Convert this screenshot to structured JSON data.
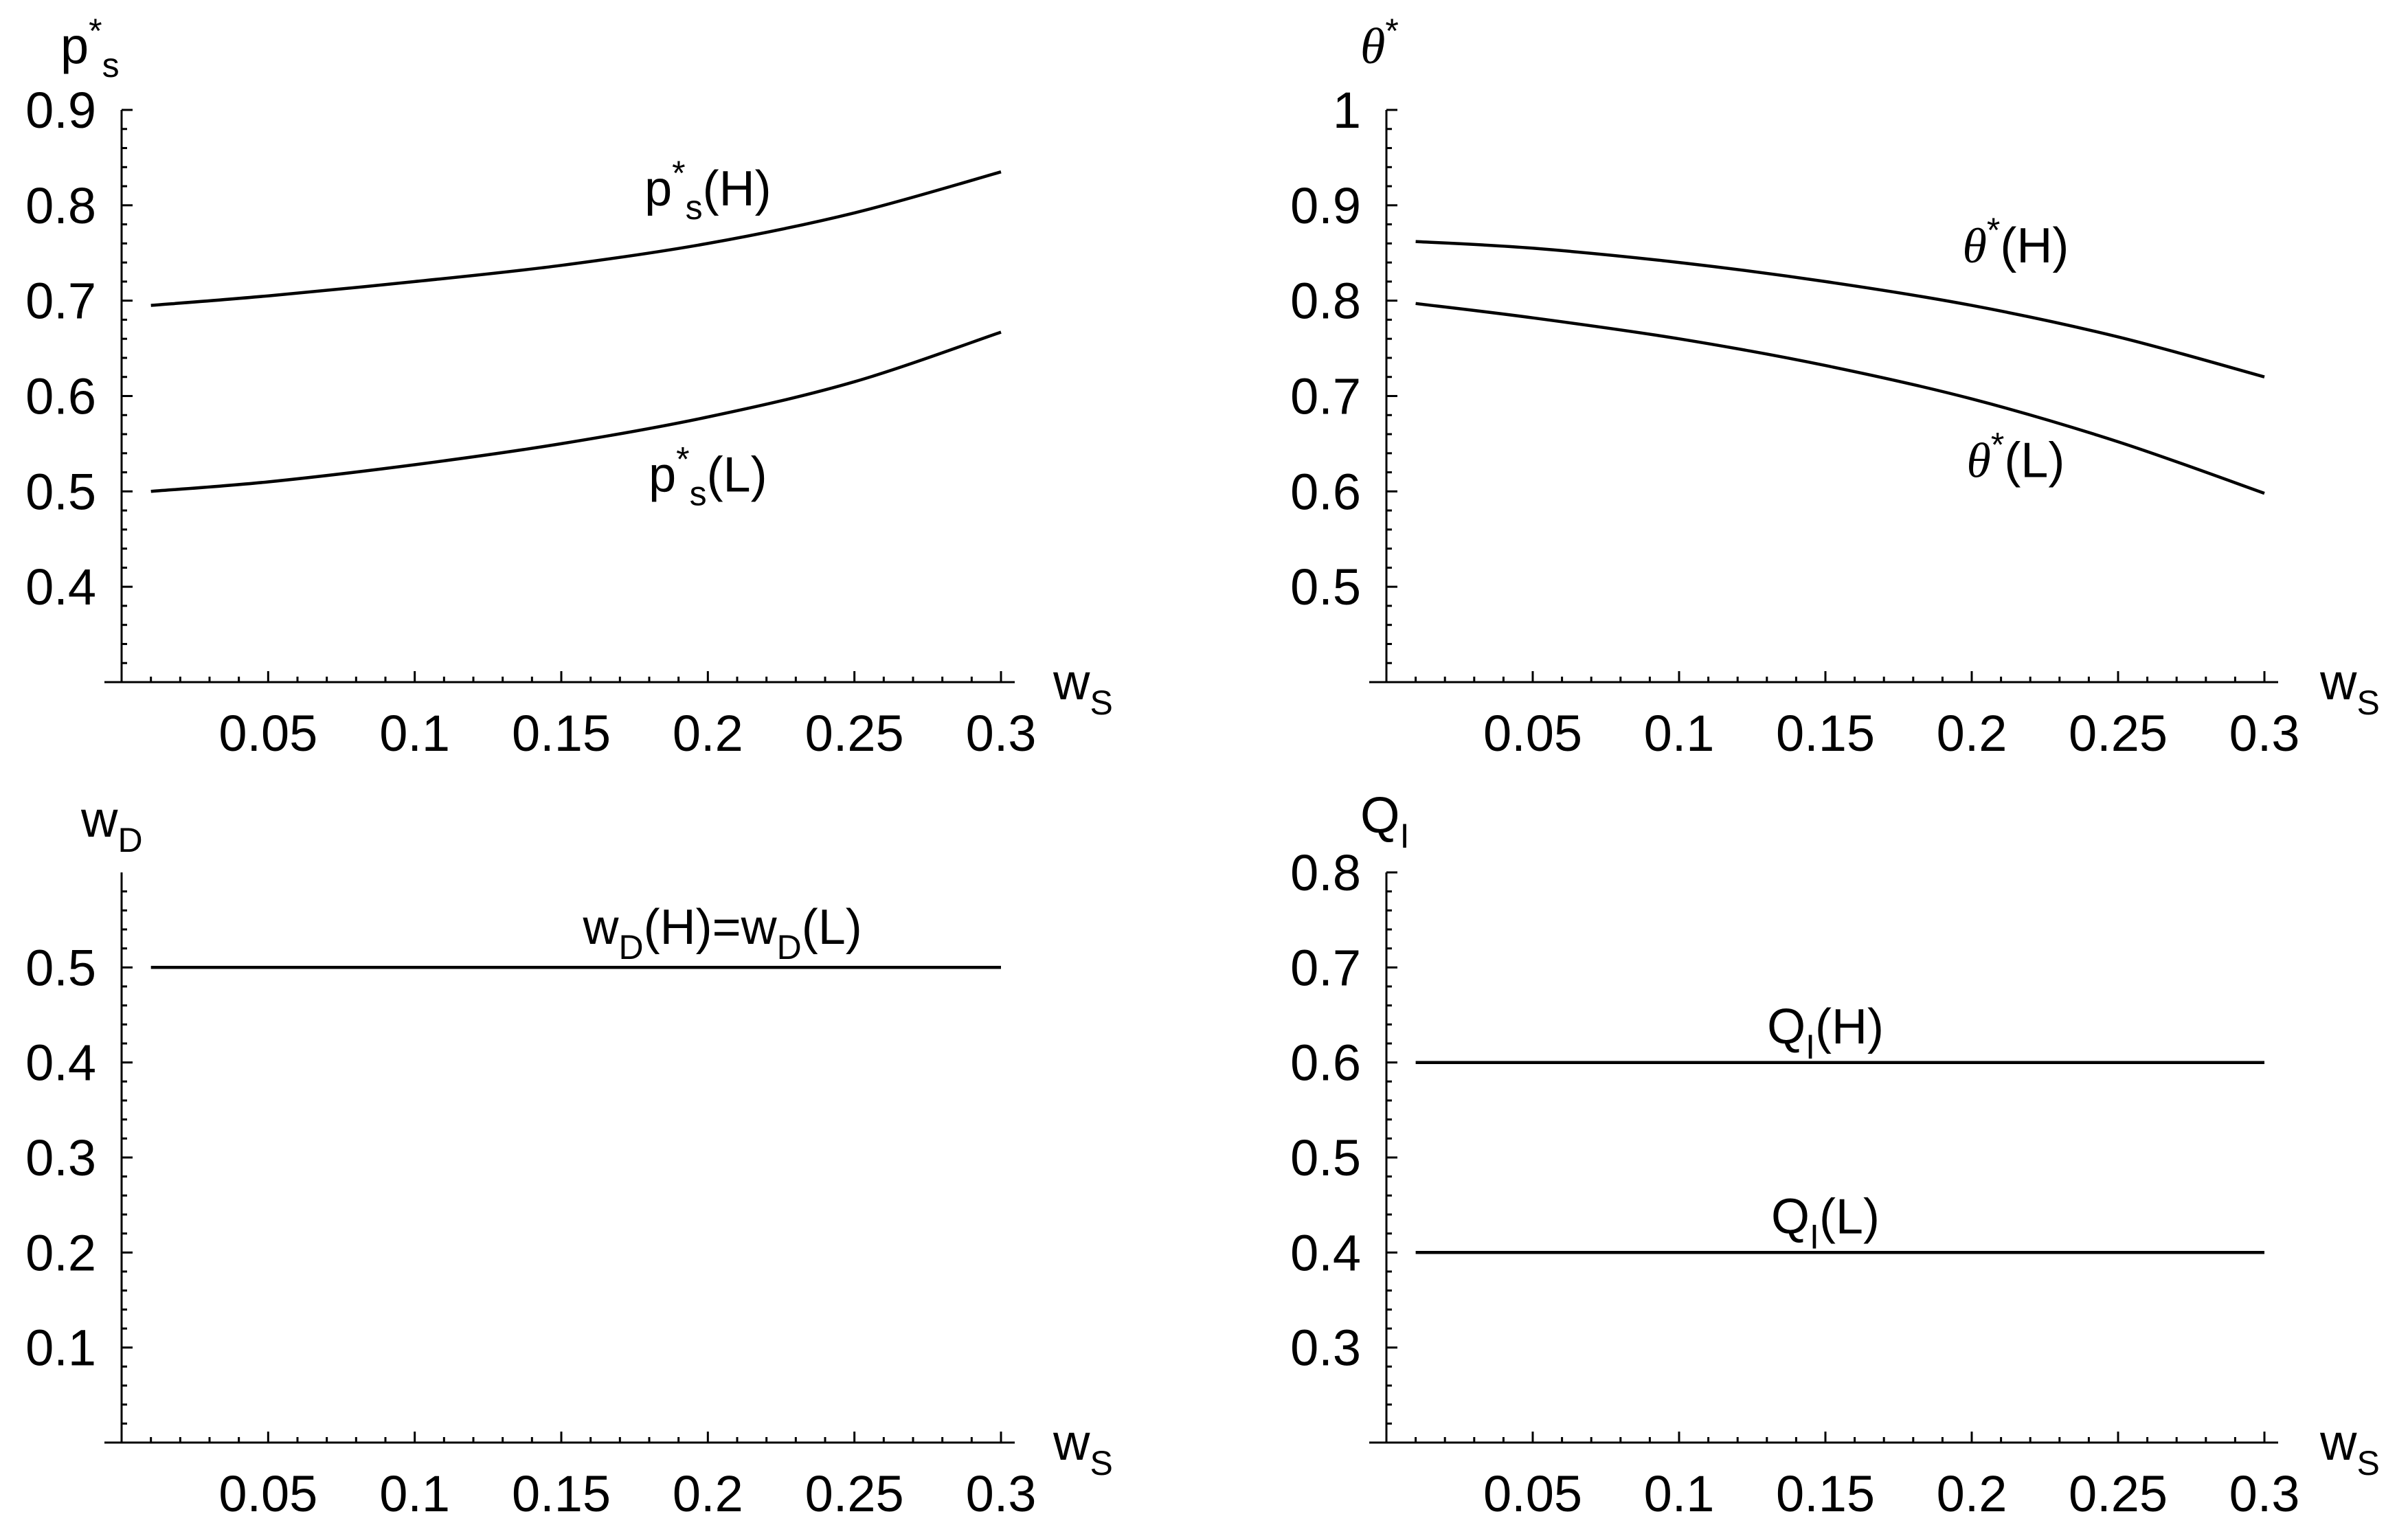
{
  "chart_data": [
    {
      "id": "p",
      "type": "line",
      "ylabel": "p*s",
      "ylabel_parts": {
        "base": "p",
        "sup": "*",
        "sub": "s"
      },
      "xlabel": "wS",
      "xlabel_parts": {
        "base": "w",
        "sub": "S"
      },
      "xlim": [
        0,
        0.3
      ],
      "ylim": [
        0.3,
        0.9
      ],
      "x_ticks": [
        0.05,
        0.1,
        0.15,
        0.2,
        0.25,
        0.3
      ],
      "x_tick_labels": [
        "0.05",
        "0.1",
        "0.15",
        "0.2",
        "0.25",
        "0.3"
      ],
      "y_ticks": [
        0.4,
        0.5,
        0.6,
        0.7,
        0.8,
        0.9
      ],
      "y_tick_labels": [
        "0.4",
        "0.5",
        "0.6",
        "0.7",
        "0.8",
        "0.9"
      ],
      "series": [
        {
          "name": "p*s(H)",
          "label_parts": {
            "base": "p",
            "sup": "*",
            "sub": "s",
            "arg": "(H)"
          },
          "x": [
            0.01,
            0.05,
            0.1,
            0.15,
            0.2,
            0.25,
            0.3
          ],
          "y": [
            0.695,
            0.705,
            0.72,
            0.737,
            0.76,
            0.792,
            0.835
          ]
        },
        {
          "name": "p*s(L)",
          "label_parts": {
            "base": "p",
            "sup": "*",
            "sub": "s",
            "arg": "(L)"
          },
          "x": [
            0.01,
            0.05,
            0.1,
            0.15,
            0.2,
            0.25,
            0.3
          ],
          "y": [
            0.5,
            0.51,
            0.528,
            0.55,
            0.578,
            0.615,
            0.667
          ]
        }
      ],
      "annotations": [
        {
          "series": 0,
          "x": 0.2,
          "y": 0.8
        },
        {
          "series": 1,
          "x": 0.2,
          "y": 0.5
        }
      ]
    },
    {
      "id": "theta",
      "type": "line",
      "ylabel": "θ*",
      "ylabel_parts": {
        "base": "θ",
        "sup": "*",
        "greek": true
      },
      "xlabel": "wS",
      "xlabel_parts": {
        "base": "w",
        "sub": "S"
      },
      "xlim": [
        0,
        0.3
      ],
      "ylim": [
        0.4,
        1.0
      ],
      "x_ticks": [
        0.05,
        0.1,
        0.15,
        0.2,
        0.25,
        0.3
      ],
      "x_tick_labels": [
        "0.05",
        "0.1",
        "0.15",
        "0.2",
        "0.25",
        "0.3"
      ],
      "y_ticks": [
        0.5,
        0.6,
        0.7,
        0.8,
        0.9,
        1.0
      ],
      "y_tick_labels": [
        "0.5",
        "0.6",
        "0.7",
        "0.8",
        "0.9",
        "1"
      ],
      "series": [
        {
          "name": "θ*(H)",
          "label_parts": {
            "base": "θ",
            "sup": "*",
            "arg": "(H)",
            "greek": true
          },
          "x": [
            0.01,
            0.05,
            0.1,
            0.15,
            0.2,
            0.25,
            0.3
          ],
          "y": [
            0.862,
            0.855,
            0.84,
            0.82,
            0.795,
            0.762,
            0.72
          ]
        },
        {
          "name": "θ*(L)",
          "label_parts": {
            "base": "θ",
            "sup": "*",
            "arg": "(L)",
            "greek": true
          },
          "x": [
            0.01,
            0.05,
            0.1,
            0.15,
            0.2,
            0.25,
            0.3
          ],
          "y": [
            0.797,
            0.782,
            0.76,
            0.732,
            0.697,
            0.652,
            0.598
          ]
        }
      ],
      "annotations": [
        {
          "series": 0,
          "x": 0.215,
          "y": 0.84
        },
        {
          "series": 1,
          "x": 0.215,
          "y": 0.615
        }
      ]
    },
    {
      "id": "wD",
      "type": "line",
      "ylabel": "wD",
      "ylabel_parts": {
        "base": "w",
        "sub": "D"
      },
      "xlabel": "wS",
      "xlabel_parts": {
        "base": "w",
        "sub": "S"
      },
      "xlim": [
        0,
        0.3
      ],
      "ylim": [
        0.0,
        0.6
      ],
      "x_ticks": [
        0.05,
        0.1,
        0.15,
        0.2,
        0.25,
        0.3
      ],
      "x_tick_labels": [
        "0.05",
        "0.1",
        "0.15",
        "0.2",
        "0.25",
        "0.3"
      ],
      "y_ticks": [
        0.1,
        0.2,
        0.3,
        0.4,
        0.5
      ],
      "y_tick_labels": [
        "0.1",
        "0.2",
        "0.3",
        "0.4",
        "0.5"
      ],
      "series": [
        {
          "name": "wD(H)=wD(L)",
          "label_parts": {
            "base": "w",
            "sub": "D",
            "arg": "(H)=",
            "base2": "w",
            "sub2": "D",
            "arg2": "(L)"
          },
          "x": [
            0.01,
            0.3
          ],
          "y": [
            0.5,
            0.5
          ]
        }
      ],
      "annotations": [
        {
          "series": 0,
          "x": 0.205,
          "y": 0.525
        }
      ]
    },
    {
      "id": "QI",
      "type": "line",
      "ylabel": "QI",
      "ylabel_parts": {
        "base": "Q",
        "sub": "I"
      },
      "xlabel": "wS",
      "xlabel_parts": {
        "base": "w",
        "sub": "S"
      },
      "xlim": [
        0,
        0.3
      ],
      "ylim": [
        0.2,
        0.8
      ],
      "x_ticks": [
        0.05,
        0.1,
        0.15,
        0.2,
        0.25,
        0.3
      ],
      "x_tick_labels": [
        "0.05",
        "0.1",
        "0.15",
        "0.2",
        "0.25",
        "0.3"
      ],
      "y_ticks": [
        0.3,
        0.4,
        0.5,
        0.6,
        0.7,
        0.8
      ],
      "y_tick_labels": [
        "0.3",
        "0.4",
        "0.5",
        "0.6",
        "0.7",
        "0.8"
      ],
      "series": [
        {
          "name": "QI(H)",
          "label_parts": {
            "base": "Q",
            "sub": "I",
            "arg": "(H)"
          },
          "x": [
            0.01,
            0.3
          ],
          "y": [
            0.6,
            0.6
          ]
        },
        {
          "name": "QI(L)",
          "label_parts": {
            "base": "Q",
            "sub": "I",
            "arg": "(L)"
          },
          "x": [
            0.01,
            0.3
          ],
          "y": [
            0.4,
            0.4
          ]
        }
      ],
      "annotations": [
        {
          "series": 0,
          "x": 0.15,
          "y": 0.62
        },
        {
          "series": 1,
          "x": 0.15,
          "y": 0.42
        }
      ]
    }
  ]
}
